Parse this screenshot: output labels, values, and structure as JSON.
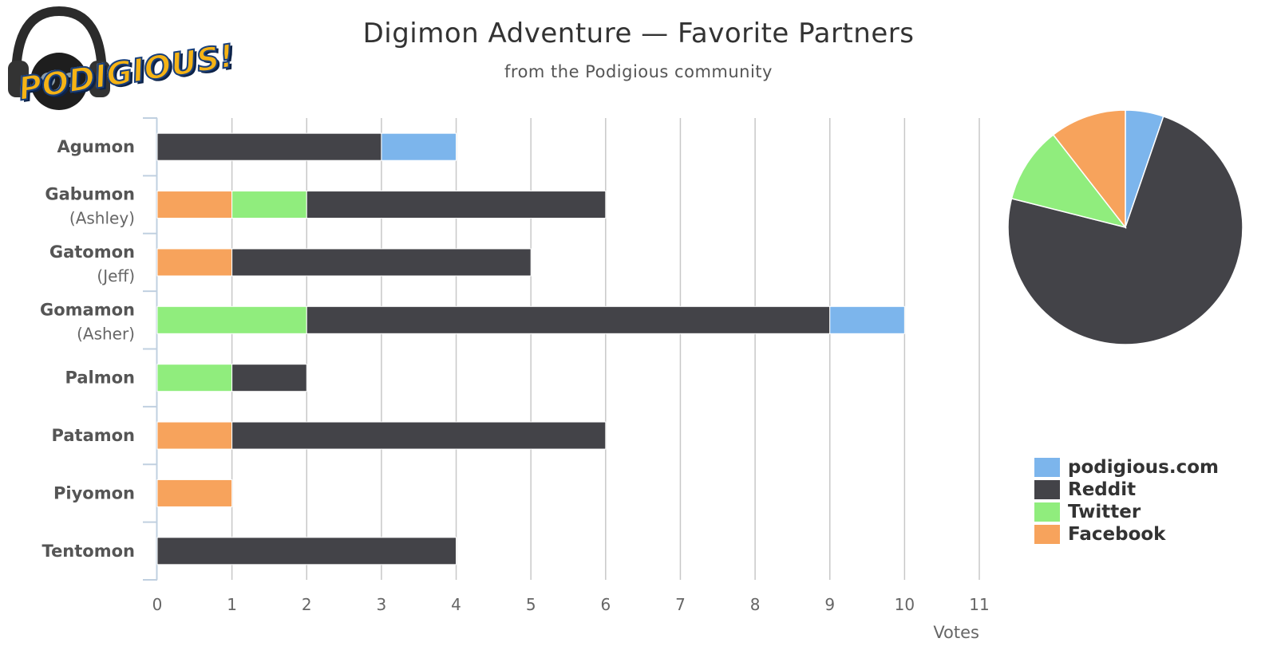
{
  "chart_data": [
    {
      "type": "bar",
      "orientation": "horizontal",
      "stacked": true,
      "title": "Digimon Adventure — Favorite Partners",
      "subtitle": "from the Podigious community",
      "categories": [
        {
          "name": "Agumon",
          "note": ""
        },
        {
          "name": "Gabumon",
          "note": "(Ashley)"
        },
        {
          "name": "Gatomon",
          "note": "(Jeff)"
        },
        {
          "name": "Gomamon",
          "note": "(Asher)"
        },
        {
          "name": "Palmon",
          "note": ""
        },
        {
          "name": "Patamon",
          "note": ""
        },
        {
          "name": "Piyomon",
          "note": ""
        },
        {
          "name": "Tentomon",
          "note": ""
        }
      ],
      "series": [
        {
          "name": "Facebook",
          "color": "#f7a35c",
          "values": [
            0,
            1,
            1,
            0,
            0,
            1,
            1,
            0
          ]
        },
        {
          "name": "Twitter",
          "color": "#90ed7d",
          "values": [
            0,
            1,
            0,
            2,
            1,
            0,
            0,
            0
          ]
        },
        {
          "name": "Reddit",
          "color": "#434348",
          "values": [
            3,
            4,
            4,
            7,
            1,
            5,
            0,
            4
          ]
        },
        {
          "name": "podigious.com",
          "color": "#7cb5ec",
          "values": [
            1,
            0,
            0,
            1,
            0,
            0,
            0,
            0
          ]
        }
      ],
      "xlabel": "Votes",
      "xlim": [
        0,
        11
      ],
      "xticks": [
        0,
        1,
        2,
        3,
        4,
        5,
        6,
        7,
        8,
        9,
        10,
        11
      ],
      "grid": true
    },
    {
      "type": "pie",
      "slices": [
        {
          "name": "podigious.com",
          "color": "#7cb5ec",
          "value": 2
        },
        {
          "name": "Reddit",
          "color": "#434348",
          "value": 28
        },
        {
          "name": "Twitter",
          "color": "#90ed7d",
          "value": 4
        },
        {
          "name": "Facebook",
          "color": "#f7a35c",
          "value": 4
        }
      ]
    }
  ],
  "legend": {
    "placement": "right",
    "items": [
      {
        "label": "podigious.com",
        "color": "#7cb5ec"
      },
      {
        "label": "Reddit",
        "color": "#434348"
      },
      {
        "label": "Twitter",
        "color": "#90ed7d"
      },
      {
        "label": "Facebook",
        "color": "#f7a35c"
      }
    ]
  },
  "logo": {
    "text": "PODIGIOUS!",
    "icon": "headphones-mascot-icon"
  }
}
